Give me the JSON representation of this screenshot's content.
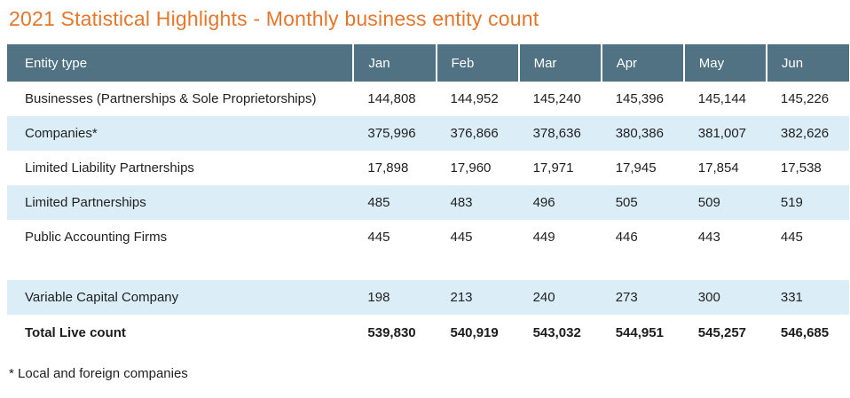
{
  "page": {
    "title": "2021 Statistical Highlights - Monthly business entity count",
    "footnote": "* Local and foreign companies"
  },
  "colors": {
    "title_orange": "#e5762c",
    "header_bg": "#507282",
    "header_text": "#ffffff",
    "alt_row_bg": "#dbeef8",
    "body_text": "#212121"
  },
  "chart_data": {
    "type": "table",
    "title": "2021 Statistical Highlights - Monthly business entity count",
    "columns": [
      "Entity type",
      "Jan",
      "Feb",
      "Mar",
      "Apr",
      "May",
      "Jun"
    ],
    "rows": [
      {
        "label": "Businesses (Partnerships & Sole Proprietorships)",
        "values": [
          "144,808",
          "144,952",
          "145,240",
          "145,396",
          "145,144",
          "145,226"
        ]
      },
      {
        "label": "Companies*",
        "values": [
          "375,996",
          "376,866",
          "378,636",
          "380,386",
          "381,007",
          "382,626"
        ]
      },
      {
        "label": "Limited Liability Partnerships",
        "values": [
          "17,898",
          "17,960",
          "17,971",
          "17,945",
          "17,854",
          "17,538"
        ]
      },
      {
        "label": "Limited Partnerships",
        "values": [
          "485",
          "483",
          "496",
          "505",
          "509",
          "519"
        ]
      },
      {
        "label": "Public Accounting Firms",
        "values": [
          "445",
          "445",
          "449",
          "446",
          "443",
          "445"
        ]
      },
      {
        "label": "",
        "values": [
          "",
          "",
          "",
          "",
          "",
          ""
        ]
      },
      {
        "label": "Variable Capital Company",
        "values": [
          "198",
          "213",
          "240",
          "273",
          "300",
          "331"
        ]
      },
      {
        "label": "Total Live count",
        "values": [
          "539,830",
          "540,919",
          "543,032",
          "544,951",
          "545,257",
          "546,685"
        ]
      }
    ],
    "footnote": "* Local and foreign companies",
    "notes": "Rows alternate white and light blue; blank spacer row between Public Accounting Firms and Variable Capital Company; Total Live count row is bold."
  }
}
